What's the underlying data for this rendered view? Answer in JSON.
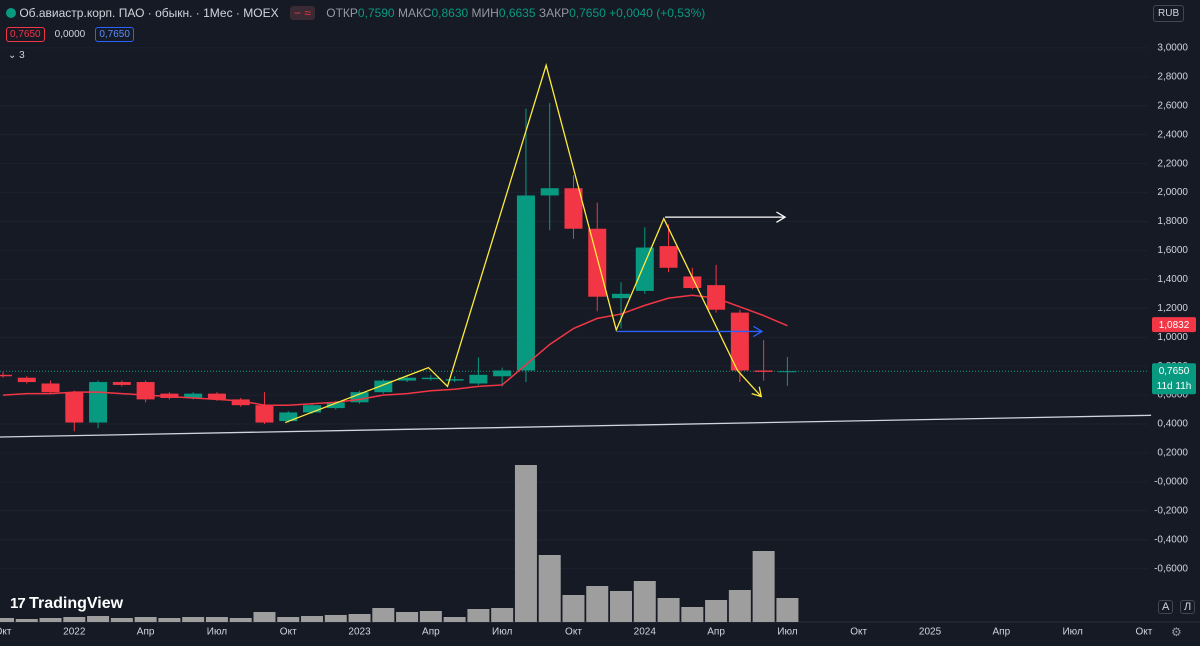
{
  "legend": {
    "title": "Об.авиастр.корп. ПАО · обыкн. · 1Мес · MOEX",
    "open_label": "ОТКР",
    "open": "0,7590",
    "high_label": "МАКС",
    "high": "0,8630",
    "low_label": "МИН",
    "low": "0,6635",
    "close_label": "ЗАКР",
    "close": "0,7650",
    "change": "+0,0040 (+0,53%)",
    "boxes": [
      "0,7650",
      "0,0000",
      "0,7650"
    ],
    "indicators_count": "3"
  },
  "toolbar": {
    "currency": "RUB",
    "auto": "A",
    "log": "Л",
    "countdown": "11d 11h",
    "logo": "TradingView"
  },
  "chart_data": {
    "type": "candlestick",
    "categories": [
      "Окт",
      null,
      null,
      "2022",
      null,
      null,
      "Апр",
      null,
      null,
      "Июл",
      null,
      null,
      "Окт",
      null,
      null,
      "2023",
      null,
      null,
      "Апр",
      null,
      null,
      "Июл",
      null,
      null,
      "Окт",
      null,
      null,
      "2024",
      null,
      null,
      "Апр",
      null,
      null,
      "Июл",
      null,
      null,
      "Окт",
      null,
      null,
      "2025",
      null,
      null,
      "Апр",
      null,
      null,
      "Июл",
      null,
      null,
      "Окт"
    ],
    "open": [
      0.74,
      0.72,
      0.68,
      0.62,
      0.41,
      0.69,
      0.69,
      0.61,
      0.58,
      0.61,
      0.57,
      0.53,
      0.42,
      0.48,
      0.51,
      0.55,
      0.62,
      0.7,
      0.71,
      0.7,
      0.68,
      0.73,
      0.77,
      1.98,
      2.03,
      1.75,
      1.27,
      1.32,
      1.63,
      1.42,
      1.36,
      1.17,
      0.77,
      0.759,
      null,
      null,
      null,
      null,
      null,
      null,
      null,
      null,
      null,
      null,
      null,
      null,
      null,
      null,
      null
    ],
    "high": [
      0.76,
      0.73,
      0.7,
      0.63,
      0.7,
      0.7,
      0.7,
      0.62,
      0.62,
      0.62,
      0.58,
      0.62,
      0.49,
      0.54,
      0.56,
      0.63,
      0.71,
      0.74,
      0.74,
      0.73,
      0.86,
      0.79,
      2.58,
      2.62,
      2.12,
      1.93,
      1.38,
      1.76,
      1.78,
      1.48,
      1.5,
      1.19,
      0.98,
      0.863,
      null,
      null,
      null,
      null,
      null,
      null,
      null,
      null,
      null,
      null,
      null,
      null,
      null,
      null,
      null
    ],
    "low": [
      0.72,
      0.68,
      0.61,
      0.35,
      0.37,
      0.66,
      0.55,
      0.57,
      0.57,
      0.56,
      0.52,
      0.4,
      0.41,
      0.47,
      0.5,
      0.54,
      0.61,
      0.69,
      0.7,
      0.69,
      0.67,
      0.66,
      0.69,
      1.74,
      1.68,
      1.18,
      1.06,
      1.3,
      1.45,
      1.33,
      1.17,
      0.69,
      0.7,
      0.6635,
      null,
      null,
      null,
      null,
      null,
      null,
      null,
      null,
      null,
      null,
      null,
      null,
      null,
      null,
      null
    ],
    "close": [
      0.73,
      0.69,
      0.62,
      0.41,
      0.69,
      0.67,
      0.57,
      0.58,
      0.61,
      0.57,
      0.53,
      0.41,
      0.48,
      0.53,
      0.55,
      0.62,
      0.7,
      0.72,
      0.72,
      0.71,
      0.74,
      0.77,
      1.98,
      2.03,
      1.75,
      1.28,
      1.3,
      1.62,
      1.48,
      1.34,
      1.19,
      0.77,
      0.76,
      0.765,
      null,
      null,
      null,
      null,
      null,
      null,
      null,
      null,
      null,
      null,
      null,
      null,
      null,
      null,
      null
    ],
    "colors": {
      "up": "#089981",
      "down": "#f23645"
    },
    "volume": {
      "color": "#9e9e9e",
      "values": [
        4,
        3,
        4,
        5,
        6,
        4,
        5,
        4,
        5,
        5,
        4,
        10,
        5,
        6,
        7,
        8,
        14,
        10,
        11,
        5,
        13,
        14,
        157,
        67,
        27,
        36,
        31,
        41,
        24,
        15,
        22,
        32,
        71,
        24,
        null,
        null,
        null,
        null,
        null,
        null,
        null,
        null,
        null,
        null,
        null,
        null,
        null,
        null,
        null
      ]
    },
    "ma": {
      "color": "#f23645",
      "values": [
        0.6,
        0.61,
        0.61,
        0.62,
        0.62,
        0.61,
        0.6,
        0.59,
        0.58,
        0.57,
        0.56,
        0.53,
        0.53,
        0.54,
        0.55,
        0.57,
        0.6,
        0.61,
        0.63,
        0.64,
        0.66,
        0.67,
        0.81,
        0.95,
        1.06,
        1.13,
        1.16,
        1.22,
        1.27,
        1.29,
        1.27,
        1.21,
        1.15,
        1.08,
        null,
        null,
        null,
        null,
        null,
        null,
        null,
        null,
        null,
        null,
        null,
        null,
        null,
        null,
        null
      ]
    },
    "drawings": [
      {
        "color": "#ffeb3b",
        "arrow": true,
        "x": [
          11.87,
          17.9,
          18.7,
          22.85,
          25.8,
          27.8,
          30.9,
          31.9
        ],
        "values": [
          0.41,
          0.79,
          0.66,
          2.88,
          1.05,
          1.82,
          0.77,
          0.59
        ]
      },
      {
        "color": "#ffffff",
        "arrow": true,
        "x": [
          27.85,
          32.9
        ],
        "values": [
          1.83,
          1.83
        ]
      },
      {
        "color": "#2962ff",
        "arrow": true,
        "x": [
          25.83,
          31.93
        ],
        "values": [
          1.04,
          1.04
        ]
      },
      {
        "color": "#d1d4dc",
        "arrow": false,
        "x": [
          -0.13,
          48.3
        ],
        "values": [
          0.31,
          0.46
        ]
      }
    ],
    "price_tags": [
      {
        "value": 1.0832,
        "label": "1,0832",
        "color": "#f23645"
      },
      {
        "value": 0.765,
        "label": "0,7650",
        "color": "#089981"
      }
    ],
    "ylim": [
      -0.969,
      3.124
    ],
    "yticks": [
      {
        "value": 3.0,
        "label": "3,0000"
      },
      {
        "value": 2.8,
        "label": "2,8000"
      },
      {
        "value": 2.6,
        "label": "2,6000"
      },
      {
        "value": 2.4,
        "label": "2,4000"
      },
      {
        "value": 2.2,
        "label": "2,2000"
      },
      {
        "value": 2.0,
        "label": "2,0000"
      },
      {
        "value": 1.8,
        "label": "1,8000"
      },
      {
        "value": 1.6,
        "label": "1,6000"
      },
      {
        "value": 1.4,
        "label": "1,4000"
      },
      {
        "value": 1.2,
        "label": "1,2000"
      },
      {
        "value": 1.0,
        "label": "1,0000"
      },
      {
        "value": 0.8,
        "label": "0,8000"
      },
      {
        "value": 0.6,
        "label": "0,6000"
      },
      {
        "value": 0.4,
        "label": "0,4000"
      },
      {
        "value": 0.2,
        "label": "0,2000"
      },
      {
        "value": 0,
        "label": "-0,0000"
      },
      {
        "value": -0.2,
        "label": "-0,2000"
      },
      {
        "value": -0.4,
        "label": "-0,4000"
      },
      {
        "value": -0.6,
        "label": "-0,6000"
      }
    ],
    "grid": true
  }
}
